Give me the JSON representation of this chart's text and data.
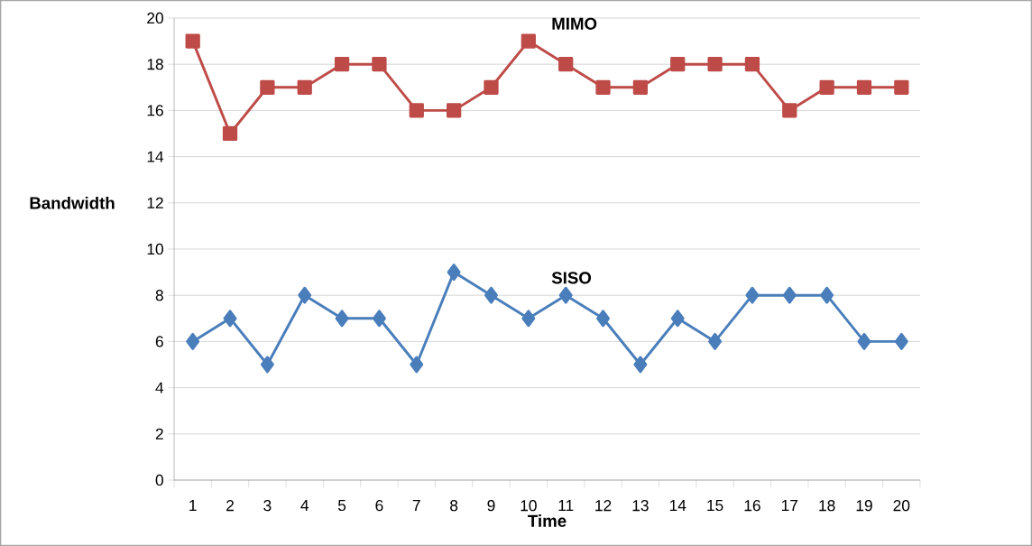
{
  "chart_data": {
    "type": "line",
    "xlabel": "Time",
    "ylabel": "Bandwidth",
    "categories": [
      "1",
      "2",
      "3",
      "4",
      "5",
      "6",
      "7",
      "8",
      "9",
      "10",
      "11",
      "12",
      "13",
      "14",
      "15",
      "16",
      "17",
      "18",
      "19",
      "20"
    ],
    "series": [
      {
        "name": "MIMO",
        "color": "#be4b48",
        "marker": "square",
        "values": [
          19,
          15,
          17,
          17,
          18,
          18,
          16,
          16,
          17,
          19,
          18,
          17,
          17,
          18,
          18,
          18,
          16,
          17,
          17,
          17
        ]
      },
      {
        "name": "SISO",
        "color": "#4a7ebb",
        "marker": "diamond",
        "values": [
          6,
          7,
          5,
          8,
          7,
          7,
          5,
          9,
          8,
          7,
          8,
          7,
          5,
          7,
          6,
          8,
          8,
          8,
          6,
          6
        ]
      }
    ],
    "ylim": [
      0,
      20
    ],
    "yticks": [
      0,
      2,
      4,
      6,
      8,
      10,
      12,
      14,
      16,
      18,
      20
    ],
    "grid": "y",
    "line_style": "solid"
  }
}
